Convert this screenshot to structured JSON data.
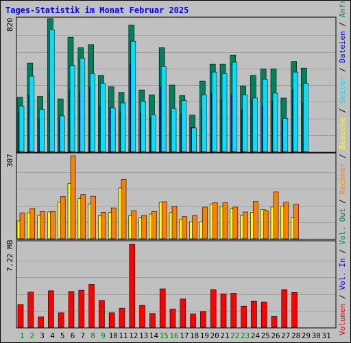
{
  "title": "Tages-Statistik im Monat Februar 2025",
  "colors": {
    "background": "#c0c0c0",
    "panel": "#c0c0c0",
    "gridline": "#a0a0a0",
    "title": "#0000ff",
    "anfragen": "#00805c",
    "dateien": "#0000ff",
    "seiten": "#00e0ff",
    "besuche": "#ffff00",
    "rechner": "#ff8000",
    "vol_out": "#00805c",
    "vol_in": "#0000ff",
    "volumen": "#ff0000",
    "day_weekday": "#000000",
    "day_weekend": "#008000"
  },
  "chart_data": [
    {
      "type": "bar",
      "panel": "hits",
      "ymax_label": "820",
      "ylim": [
        0,
        820
      ],
      "grid": true,
      "legend_position": "right",
      "categories": [
        "1",
        "2",
        "3",
        "4",
        "5",
        "6",
        "7",
        "8",
        "9",
        "10",
        "11",
        "12",
        "13",
        "14",
        "15",
        "16",
        "17",
        "18",
        "19",
        "20",
        "21",
        "22",
        "23",
        "24",
        "25",
        "26",
        "27",
        "28",
        "29",
        "30",
        "31"
      ],
      "series": [
        {
          "name": "Anfragen",
          "values": [
            335,
            545,
            340,
            820,
            325,
            705,
            640,
            660,
            470,
            400,
            365,
            780,
            380,
            350,
            640,
            410,
            345,
            225,
            435,
            540,
            540,
            595,
            405,
            470,
            510,
            510,
            330,
            555,
            515,
            0,
            0
          ]
        },
        {
          "name": "Dateien",
          "values": [
            240,
            350,
            200,
            380,
            210,
            380,
            370,
            400,
            280,
            270,
            250,
            540,
            240,
            210,
            400,
            250,
            230,
            150,
            260,
            360,
            320,
            350,
            260,
            320,
            280,
            310,
            190,
            380,
            300,
            0,
            0
          ]
        },
        {
          "name": "Seiten",
          "values": [
            280,
            465,
            260,
            750,
            220,
            530,
            575,
            480,
            420,
            270,
            300,
            680,
            310,
            225,
            525,
            265,
            315,
            145,
            350,
            490,
            480,
            550,
            350,
            330,
            445,
            360,
            205,
            490,
            420,
            0,
            0
          ]
        }
      ],
      "right_labels": [
        "Anfragen",
        "Dateien",
        "Seiten"
      ]
    },
    {
      "type": "bar",
      "panel": "visits",
      "ymax_label": "307",
      "ylim": [
        0,
        307
      ],
      "grid": true,
      "legend_position": "right",
      "categories": [
        "1",
        "2",
        "3",
        "4",
        "5",
        "6",
        "7",
        "8",
        "9",
        "10",
        "11",
        "12",
        "13",
        "14",
        "15",
        "16",
        "17",
        "18",
        "19",
        "20",
        "21",
        "22",
        "23",
        "24",
        "25",
        "26",
        "27",
        "28",
        "29",
        "30",
        "31"
      ],
      "series": [
        {
          "name": "Besuche",
          "values": [
            66,
            96,
            86,
            99,
            135,
            205,
            148,
            129,
            85,
            97,
            188,
            85,
            77,
            91,
            135,
            97,
            72,
            62,
            63,
            129,
            121,
            110,
            86,
            97,
            108,
            117,
            121,
            78,
            0,
            0,
            0
          ]
        },
        {
          "name": "Rechner",
          "values": [
            96,
            112,
            101,
            101,
            156,
            307,
            163,
            157,
            98,
            114,
            220,
            104,
            86,
            101,
            137,
            121,
            82,
            86,
            117,
            133,
            133,
            117,
            99,
            138,
            104,
            173,
            135,
            127,
            0,
            0,
            0
          ]
        }
      ],
      "right_labels": [
        "Besuche",
        "Rechner"
      ]
    },
    {
      "type": "bar",
      "panel": "volume",
      "ymax_label": "7.22 MB",
      "ylim": [
        0,
        7.22
      ],
      "grid": true,
      "legend_position": "right",
      "categories": [
        "1",
        "2",
        "3",
        "4",
        "5",
        "6",
        "7",
        "8",
        "9",
        "10",
        "11",
        "12",
        "13",
        "14",
        "15",
        "16",
        "17",
        "18",
        "19",
        "20",
        "21",
        "22",
        "23",
        "24",
        "25",
        "26",
        "27",
        "28",
        "29",
        "30",
        "31"
      ],
      "series": [
        {
          "name": "Volumen",
          "values": [
            1.98,
            3.06,
            0.9,
            3.17,
            1.26,
            3.11,
            3.22,
            3.73,
            2.33,
            1.26,
            1.66,
            7.22,
            1.9,
            1.2,
            3.34,
            1.58,
            2.46,
            1.15,
            1.37,
            3.28,
            2.9,
            2.96,
            1.84,
            2.26,
            2.2,
            0.94,
            3.28,
            3.02,
            0,
            0,
            0
          ]
        }
      ],
      "right_labels": [
        "Vol. Out",
        "Vol. In",
        "Volumen"
      ]
    }
  ],
  "day_labels": [
    {
      "day": "1",
      "weekend": true
    },
    {
      "day": "2",
      "weekend": true
    },
    {
      "day": "3",
      "weekend": false
    },
    {
      "day": "4",
      "weekend": false
    },
    {
      "day": "5",
      "weekend": false
    },
    {
      "day": "6",
      "weekend": false
    },
    {
      "day": "7",
      "weekend": false
    },
    {
      "day": "8",
      "weekend": true
    },
    {
      "day": "9",
      "weekend": true
    },
    {
      "day": "10",
      "weekend": false
    },
    {
      "day": "11",
      "weekend": false
    },
    {
      "day": "12",
      "weekend": false
    },
    {
      "day": "13",
      "weekend": false
    },
    {
      "day": "14",
      "weekend": false
    },
    {
      "day": "15",
      "weekend": true
    },
    {
      "day": "16",
      "weekend": true
    },
    {
      "day": "17",
      "weekend": false
    },
    {
      "day": "18",
      "weekend": false
    },
    {
      "day": "19",
      "weekend": false
    },
    {
      "day": "20",
      "weekend": false
    },
    {
      "day": "21",
      "weekend": false
    },
    {
      "day": "22",
      "weekend": true
    },
    {
      "day": "23",
      "weekend": true
    },
    {
      "day": "24",
      "weekend": false
    },
    {
      "day": "25",
      "weekend": false
    },
    {
      "day": "26",
      "weekend": false
    },
    {
      "day": "27",
      "weekend": false
    },
    {
      "day": "28",
      "weekend": false
    },
    {
      "day": "29",
      "weekend": false
    },
    {
      "day": "30",
      "weekend": false
    },
    {
      "day": "31",
      "weekend": false
    }
  ]
}
